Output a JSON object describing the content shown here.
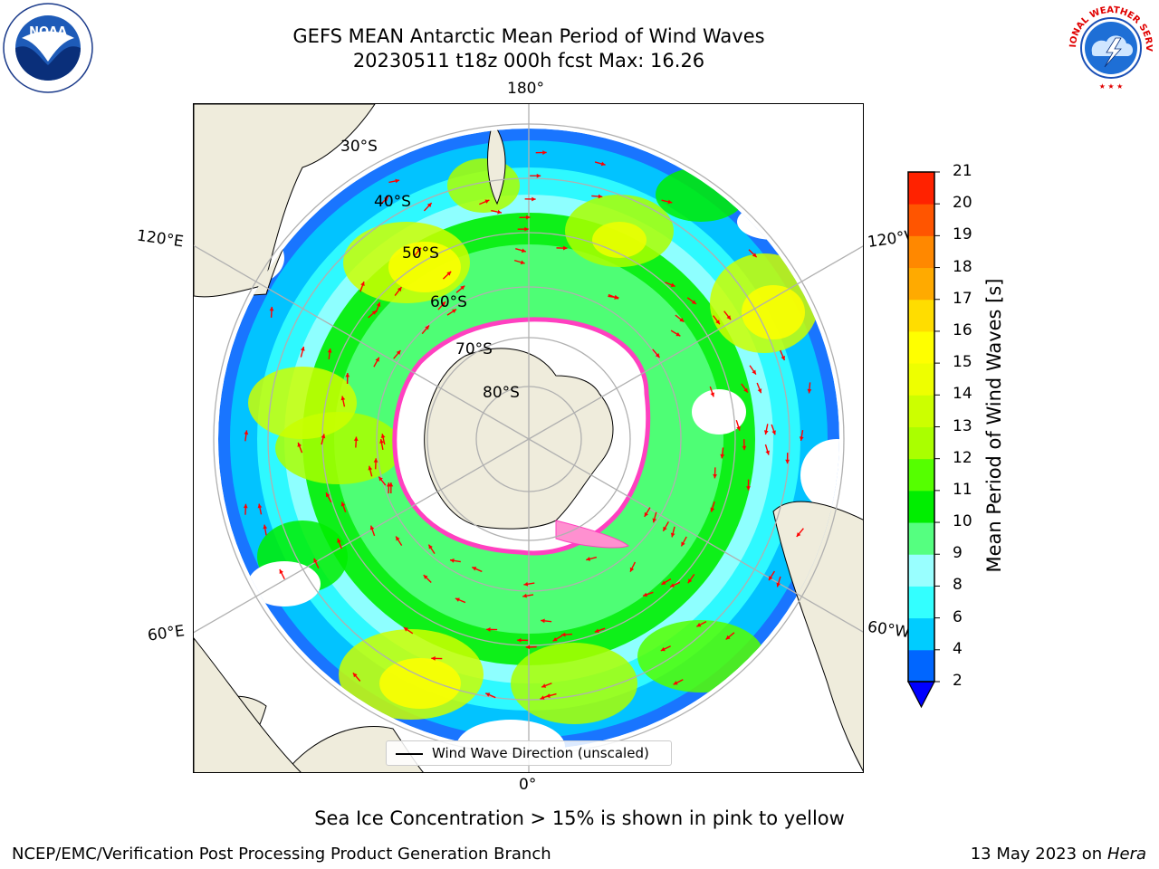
{
  "title": {
    "line1": "GEFS MEAN Antarctic Mean Period of Wind Waves",
    "line2": "20230511 t18z 000h fcst   Max: 16.26"
  },
  "logos": {
    "left": "NOAA",
    "left_ring_text": "NATIONAL OCEANIC AND ATMOSPHERIC ADMINISTRATION · U.S. DEPARTMENT OF COMMERCE",
    "right_ring_text": "NATIONAL WEATHER SERVICE"
  },
  "map": {
    "projection": "south polar stereographic",
    "longitude_labels": {
      "top": "180°",
      "upper_left": "120°E",
      "upper_right": "120°W",
      "lower_left": "60°E",
      "lower_right": "60°W",
      "bottom": "0°"
    },
    "latitude_labels": [
      "30°S",
      "40°S",
      "50°S",
      "60°S",
      "70°S",
      "80°S"
    ],
    "legend": "Wind Wave Direction (unscaled)",
    "colors": {
      "land": "#efecdc",
      "sea_ice_edge": "#ff40c0",
      "arrows": "#ff0000",
      "grid": "#b0b0b0"
    }
  },
  "colorbar": {
    "label": "Mean Period of Wind Waves [s]",
    "ticks": [
      "2",
      "4",
      "6",
      "8",
      "9",
      "10",
      "11",
      "12",
      "13",
      "14",
      "15",
      "16",
      "17",
      "18",
      "19",
      "20",
      "21"
    ],
    "colors": [
      "#0066ff",
      "#00ccff",
      "#33ffff",
      "#99ffff",
      "#55ff80",
      "#00ee00",
      "#55ff00",
      "#aaff00",
      "#ccff00",
      "#eeff00",
      "#ffff00",
      "#ffdd00",
      "#ffaa00",
      "#ff8800",
      "#ff5500",
      "#ff2200"
    ],
    "extend_color": "#0000ff"
  },
  "caption": "Sea Ice Concentration > 15% is shown in pink to yellow",
  "footer": {
    "left": "NCEP/EMC/Verification Post Processing Product Generation Branch",
    "right_date": "13 May 2023 on",
    "right_machine": "Hera"
  }
}
